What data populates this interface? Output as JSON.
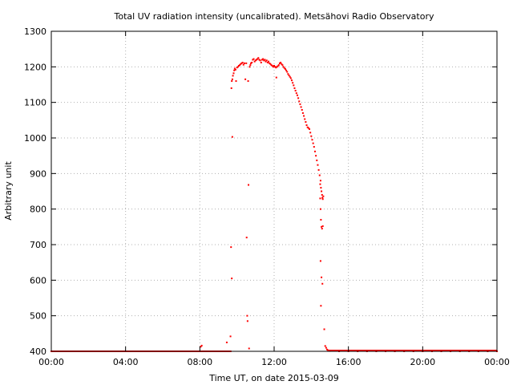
{
  "chart_data": {
    "type": "scatter",
    "title": "Total UV radiation intensity (uncalibrated). Metsähovi Radio Observatory",
    "xlabel": "Time UT, on date 2015-03-09",
    "ylabel": "Arbitrary unit",
    "xlim": [
      0,
      24
    ],
    "ylim": [
      400,
      1300
    ],
    "x_ticks": [
      {
        "value": 0,
        "label": "00:00"
      },
      {
        "value": 4,
        "label": "04:00"
      },
      {
        "value": 8,
        "label": "08:00"
      },
      {
        "value": 12,
        "label": "12:00"
      },
      {
        "value": 16,
        "label": "16:00"
      },
      {
        "value": 20,
        "label": "20:00"
      },
      {
        "value": 24,
        "label": "00:00"
      }
    ],
    "y_ticks": [
      400,
      500,
      600,
      700,
      800,
      900,
      1000,
      1100,
      1200,
      1300
    ],
    "grid": true,
    "legend": "none",
    "color": "#ff0000",
    "series": [
      {
        "points": [
          [
            0.0,
            400
          ],
          [
            0.5,
            400
          ],
          [
            1.0,
            400
          ],
          [
            1.5,
            400
          ],
          [
            2.0,
            400
          ],
          [
            2.5,
            400
          ],
          [
            3.0,
            400
          ],
          [
            3.5,
            400
          ],
          [
            4.0,
            400
          ],
          [
            4.5,
            400
          ],
          [
            5.0,
            400
          ],
          [
            5.5,
            400
          ],
          [
            6.0,
            400
          ],
          [
            6.5,
            400
          ],
          [
            7.0,
            400
          ],
          [
            7.5,
            400
          ],
          [
            8.0,
            400
          ],
          [
            8.05,
            413
          ],
          [
            8.1,
            416
          ],
          [
            8.5,
            400
          ],
          [
            9.0,
            400
          ],
          [
            9.45,
            425
          ],
          [
            9.5,
            400
          ],
          [
            9.65,
            442
          ],
          [
            9.68,
            693
          ],
          [
            9.72,
            605
          ],
          [
            9.75,
            1003
          ],
          [
            9.7,
            1140
          ],
          [
            9.72,
            1160
          ],
          [
            9.75,
            1165
          ],
          [
            9.78,
            1175
          ],
          [
            9.82,
            1182
          ],
          [
            9.85,
            1190
          ],
          [
            9.88,
            1195
          ],
          [
            9.92,
            1192
          ],
          [
            9.95,
            1160
          ],
          [
            10.0,
            1198
          ],
          [
            10.05,
            1200
          ],
          [
            10.1,
            1203
          ],
          [
            10.15,
            1205
          ],
          [
            10.2,
            1208
          ],
          [
            10.25,
            1210
          ],
          [
            10.3,
            1212
          ],
          [
            10.35,
            1206
          ],
          [
            10.4,
            1210
          ],
          [
            10.45,
            1165
          ],
          [
            10.5,
            1210
          ],
          [
            10.52,
            720
          ],
          [
            10.55,
            500
          ],
          [
            10.57,
            485
          ],
          [
            10.6,
            1160
          ],
          [
            10.62,
            868
          ],
          [
            10.65,
            408
          ],
          [
            10.68,
            1200
          ],
          [
            10.72,
            1205
          ],
          [
            10.75,
            1210
          ],
          [
            10.8,
            1212
          ],
          [
            10.85,
            1220
          ],
          [
            10.9,
            1222
          ],
          [
            10.95,
            1215
          ],
          [
            11.0,
            1218
          ],
          [
            11.05,
            1220
          ],
          [
            11.1,
            1222
          ],
          [
            11.15,
            1225
          ],
          [
            11.2,
            1220
          ],
          [
            11.25,
            1218
          ],
          [
            11.3,
            1212
          ],
          [
            11.35,
            1220
          ],
          [
            11.4,
            1222
          ],
          [
            11.45,
            1218
          ],
          [
            11.5,
            1220
          ],
          [
            11.55,
            1215
          ],
          [
            11.6,
            1218
          ],
          [
            11.65,
            1212
          ],
          [
            11.7,
            1215
          ],
          [
            11.75,
            1210
          ],
          [
            11.8,
            1208
          ],
          [
            11.85,
            1205
          ],
          [
            11.9,
            1203
          ],
          [
            11.95,
            1200
          ],
          [
            12.0,
            1203
          ],
          [
            12.05,
            1200
          ],
          [
            12.1,
            1198
          ],
          [
            12.12,
            1170
          ],
          [
            12.15,
            1200
          ],
          [
            12.2,
            1202
          ],
          [
            12.25,
            1205
          ],
          [
            12.3,
            1210
          ],
          [
            12.35,
            1212
          ],
          [
            12.4,
            1208
          ],
          [
            12.45,
            1205
          ],
          [
            12.5,
            1200
          ],
          [
            12.55,
            1197
          ],
          [
            12.6,
            1194
          ],
          [
            12.65,
            1190
          ],
          [
            12.7,
            1186
          ],
          [
            12.75,
            1180
          ],
          [
            12.8,
            1176
          ],
          [
            12.85,
            1172
          ],
          [
            12.9,
            1168
          ],
          [
            12.95,
            1162
          ],
          [
            13.0,
            1155
          ],
          [
            13.05,
            1148
          ],
          [
            13.1,
            1140
          ],
          [
            13.15,
            1133
          ],
          [
            13.2,
            1126
          ],
          [
            13.25,
            1120
          ],
          [
            13.3,
            1112
          ],
          [
            13.35,
            1103
          ],
          [
            13.4,
            1095
          ],
          [
            13.45,
            1087
          ],
          [
            13.5,
            1079
          ],
          [
            13.55,
            1070
          ],
          [
            13.6,
            1062
          ],
          [
            13.65,
            1053
          ],
          [
            13.7,
            1045
          ],
          [
            13.75,
            1036
          ],
          [
            13.8,
            1030
          ],
          [
            13.85,
            1028
          ],
          [
            13.9,
            1025
          ],
          [
            13.95,
            1015
          ],
          [
            14.0,
            1005
          ],
          [
            14.05,
            995
          ],
          [
            14.1,
            985
          ],
          [
            14.15,
            975
          ],
          [
            14.2,
            962
          ],
          [
            14.25,
            950
          ],
          [
            14.3,
            937
          ],
          [
            14.35,
            924
          ],
          [
            14.4,
            910
          ],
          [
            14.45,
            895
          ],
          [
            14.48,
            870
          ],
          [
            14.5,
            880
          ],
          [
            14.52,
            860
          ],
          [
            14.55,
            850
          ],
          [
            14.58,
            840
          ],
          [
            14.6,
            832
          ],
          [
            14.62,
            828
          ],
          [
            14.65,
            836
          ],
          [
            14.48,
            830
          ],
          [
            14.5,
            800
          ],
          [
            14.52,
            770
          ],
          [
            14.55,
            750
          ],
          [
            14.58,
            745
          ],
          [
            14.62,
            752
          ],
          [
            14.5,
            654
          ],
          [
            14.55,
            608
          ],
          [
            14.6,
            590
          ],
          [
            14.52,
            528
          ],
          [
            14.7,
            462
          ],
          [
            14.75,
            415
          ],
          [
            14.8,
            410
          ],
          [
            14.85,
            405
          ],
          [
            14.9,
            403
          ],
          [
            14.95,
            402
          ],
          [
            15.0,
            401
          ],
          [
            15.5,
            400
          ],
          [
            16.0,
            400
          ],
          [
            16.5,
            400
          ],
          [
            17.0,
            400
          ],
          [
            17.5,
            400
          ],
          [
            18.0,
            400
          ],
          [
            18.5,
            400
          ],
          [
            19.0,
            400
          ],
          [
            19.5,
            400
          ],
          [
            20.0,
            400
          ],
          [
            20.5,
            400
          ],
          [
            21.0,
            400
          ],
          [
            21.5,
            400
          ],
          [
            22.0,
            400
          ],
          [
            22.5,
            400
          ],
          [
            23.0,
            400
          ],
          [
            23.5,
            400
          ],
          [
            24.0,
            400
          ]
        ]
      }
    ]
  }
}
